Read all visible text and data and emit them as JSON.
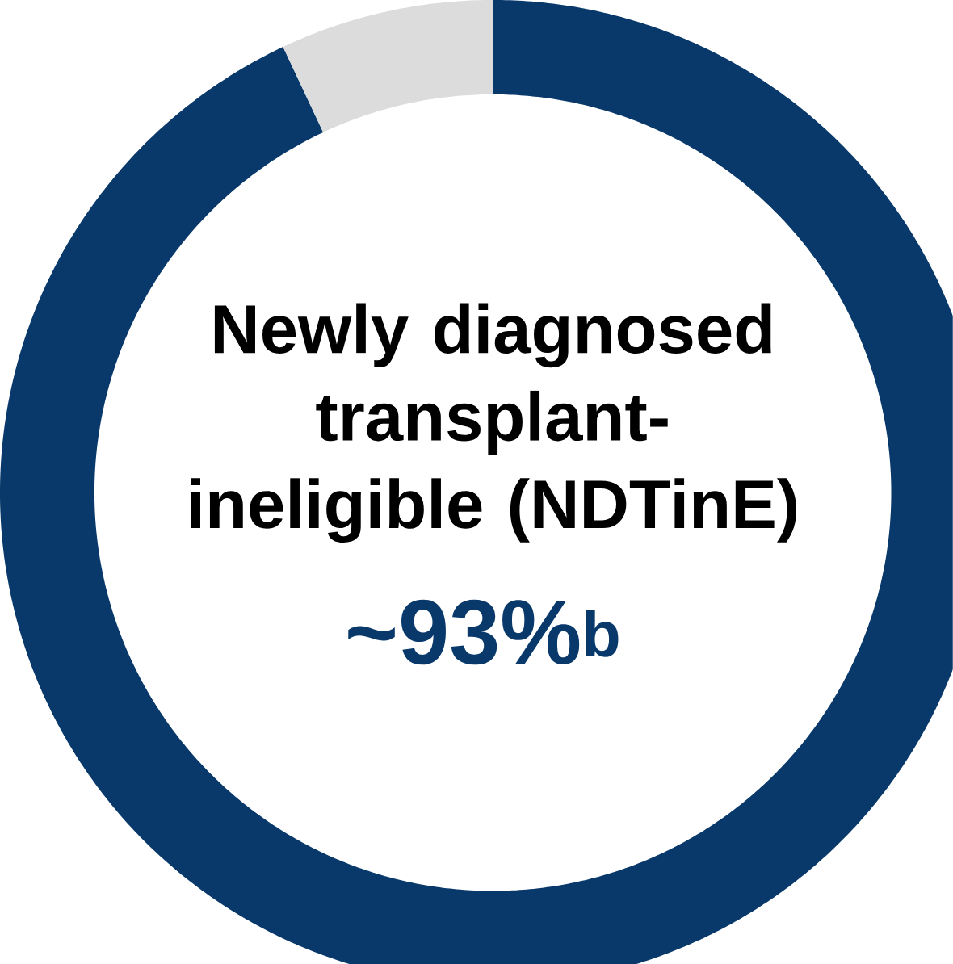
{
  "chart_data": {
    "type": "donut",
    "categories": [
      "Newly diagnosed transplant-ineligible (NDTinE)",
      null
    ],
    "values": [
      93,
      7
    ],
    "colors": [
      "#08396a",
      "#dcdcdc"
    ],
    "value_labels": [
      "~93%$^{b}$",
      null
    ]
  }
}
